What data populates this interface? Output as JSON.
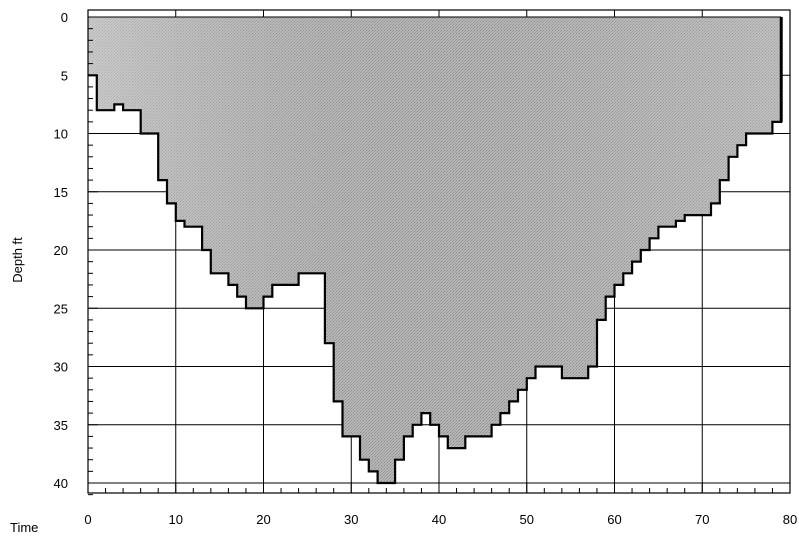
{
  "chart_data": {
    "type": "area",
    "xlabel": "Time",
    "ylabel": "Depth ft",
    "xlim": [
      0,
      80
    ],
    "ylim": [
      0,
      42
    ],
    "y_inverted": true,
    "x_ticks": [
      0,
      10,
      20,
      30,
      40,
      50,
      60,
      70,
      80
    ],
    "y_ticks": [
      0,
      5,
      10,
      15,
      20,
      25,
      30,
      35,
      40
    ],
    "grid": true,
    "colors": {
      "fill_light": "#c9c9c9",
      "fill_mid": "#a9a9a9",
      "fill_dark": "#8f8f8f",
      "edge": "#000000"
    },
    "series": [
      {
        "x": [
          0,
          1,
          2,
          3,
          4,
          5,
          6,
          7,
          8,
          9,
          10,
          11,
          12,
          13,
          14,
          15,
          16,
          17,
          18,
          19,
          20,
          21,
          22,
          23,
          24,
          25,
          26,
          27,
          28,
          29,
          30,
          31,
          32,
          33,
          34,
          35,
          36,
          37,
          38,
          39,
          40,
          41,
          42,
          43,
          44,
          45,
          46,
          47,
          48,
          49,
          50,
          51,
          52,
          53,
          54,
          55,
          56,
          57,
          58,
          59,
          60,
          61,
          62,
          63,
          64,
          65,
          66,
          67,
          68,
          69,
          70,
          71,
          72,
          73,
          74,
          75,
          76,
          77,
          78,
          79
        ],
        "y": [
          5,
          8,
          8,
          7.5,
          8,
          8,
          10,
          10,
          14,
          16,
          17.5,
          18,
          18,
          20,
          22,
          22,
          23,
          24,
          25,
          25,
          24,
          23,
          23,
          23,
          22,
          22,
          22,
          28,
          33,
          36,
          36,
          38,
          39,
          40,
          40,
          38,
          36,
          35,
          34,
          35,
          36,
          37,
          37,
          36,
          36,
          36,
          35,
          34,
          33,
          32,
          31,
          30,
          30,
          30,
          31,
          31,
          31,
          30,
          26,
          24,
          23,
          22,
          21,
          20,
          19,
          18,
          18,
          17.5,
          17,
          17,
          17,
          16,
          14,
          12,
          11,
          10,
          10,
          10,
          9,
          1
        ]
      }
    ]
  }
}
